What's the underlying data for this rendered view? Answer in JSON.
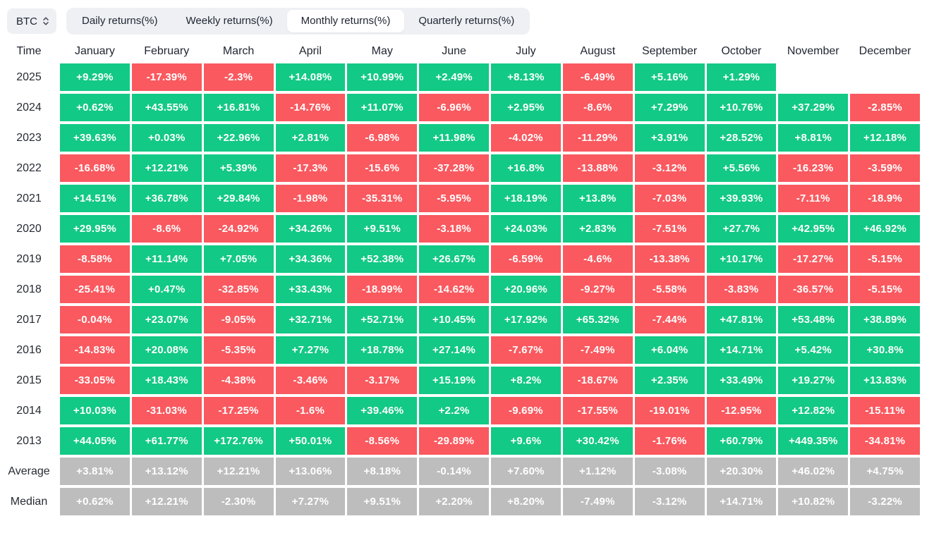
{
  "controls": {
    "asset_selector": {
      "label": "BTC"
    },
    "tabs": [
      {
        "label": "Daily returns(%)",
        "active": false
      },
      {
        "label": "Weekly returns(%)",
        "active": false
      },
      {
        "label": "Monthly returns(%)",
        "active": true
      },
      {
        "label": "Quarterly returns(%)",
        "active": false
      }
    ]
  },
  "colors": {
    "positive": "#12c985",
    "negative": "#f9595f",
    "summary": "#bdbdbd",
    "chip_background": "#eef0f4",
    "text_dark": "#1f2430"
  },
  "table": {
    "time_header": "Time",
    "months": [
      "January",
      "February",
      "March",
      "April",
      "May",
      "June",
      "July",
      "August",
      "September",
      "October",
      "November",
      "December"
    ],
    "rows": [
      {
        "label": "2025",
        "type": "year",
        "values": [
          "+9.29%",
          "-17.39%",
          "-2.3%",
          "+14.08%",
          "+10.99%",
          "+2.49%",
          "+8.13%",
          "-6.49%",
          "+5.16%",
          "+1.29%",
          "",
          ""
        ]
      },
      {
        "label": "2024",
        "type": "year",
        "values": [
          "+0.62%",
          "+43.55%",
          "+16.81%",
          "-14.76%",
          "+11.07%",
          "-6.96%",
          "+2.95%",
          "-8.6%",
          "+7.29%",
          "+10.76%",
          "+37.29%",
          "-2.85%"
        ]
      },
      {
        "label": "2023",
        "type": "year",
        "values": [
          "+39.63%",
          "+0.03%",
          "+22.96%",
          "+2.81%",
          "-6.98%",
          "+11.98%",
          "-4.02%",
          "-11.29%",
          "+3.91%",
          "+28.52%",
          "+8.81%",
          "+12.18%"
        ]
      },
      {
        "label": "2022",
        "type": "year",
        "values": [
          "-16.68%",
          "+12.21%",
          "+5.39%",
          "-17.3%",
          "-15.6%",
          "-37.28%",
          "+16.8%",
          "-13.88%",
          "-3.12%",
          "+5.56%",
          "-16.23%",
          "-3.59%"
        ]
      },
      {
        "label": "2021",
        "type": "year",
        "values": [
          "+14.51%",
          "+36.78%",
          "+29.84%",
          "-1.98%",
          "-35.31%",
          "-5.95%",
          "+18.19%",
          "+13.8%",
          "-7.03%",
          "+39.93%",
          "-7.11%",
          "-18.9%"
        ]
      },
      {
        "label": "2020",
        "type": "year",
        "values": [
          "+29.95%",
          "-8.6%",
          "-24.92%",
          "+34.26%",
          "+9.51%",
          "-3.18%",
          "+24.03%",
          "+2.83%",
          "-7.51%",
          "+27.7%",
          "+42.95%",
          "+46.92%"
        ]
      },
      {
        "label": "2019",
        "type": "year",
        "values": [
          "-8.58%",
          "+11.14%",
          "+7.05%",
          "+34.36%",
          "+52.38%",
          "+26.67%",
          "-6.59%",
          "-4.6%",
          "-13.38%",
          "+10.17%",
          "-17.27%",
          "-5.15%"
        ]
      },
      {
        "label": "2018",
        "type": "year",
        "values": [
          "-25.41%",
          "+0.47%",
          "-32.85%",
          "+33.43%",
          "-18.99%",
          "-14.62%",
          "+20.96%",
          "-9.27%",
          "-5.58%",
          "-3.83%",
          "-36.57%",
          "-5.15%"
        ]
      },
      {
        "label": "2017",
        "type": "year",
        "values": [
          "-0.04%",
          "+23.07%",
          "-9.05%",
          "+32.71%",
          "+52.71%",
          "+10.45%",
          "+17.92%",
          "+65.32%",
          "-7.44%",
          "+47.81%",
          "+53.48%",
          "+38.89%"
        ]
      },
      {
        "label": "2016",
        "type": "year",
        "values": [
          "-14.83%",
          "+20.08%",
          "-5.35%",
          "+7.27%",
          "+18.78%",
          "+27.14%",
          "-7.67%",
          "-7.49%",
          "+6.04%",
          "+14.71%",
          "+5.42%",
          "+30.8%"
        ]
      },
      {
        "label": "2015",
        "type": "year",
        "values": [
          "-33.05%",
          "+18.43%",
          "-4.38%",
          "-3.46%",
          "-3.17%",
          "+15.19%",
          "+8.2%",
          "-18.67%",
          "+2.35%",
          "+33.49%",
          "+19.27%",
          "+13.83%"
        ]
      },
      {
        "label": "2014",
        "type": "year",
        "values": [
          "+10.03%",
          "-31.03%",
          "-17.25%",
          "-1.6%",
          "+39.46%",
          "+2.2%",
          "-9.69%",
          "-17.55%",
          "-19.01%",
          "-12.95%",
          "+12.82%",
          "-15.11%"
        ]
      },
      {
        "label": "2013",
        "type": "year",
        "values": [
          "+44.05%",
          "+61.77%",
          "+172.76%",
          "+50.01%",
          "-8.56%",
          "-29.89%",
          "+9.6%",
          "+30.42%",
          "-1.76%",
          "+60.79%",
          "+449.35%",
          "-34.81%"
        ]
      },
      {
        "label": "Average",
        "type": "summary",
        "values": [
          "+3.81%",
          "+13.12%",
          "+12.21%",
          "+13.06%",
          "+8.18%",
          "-0.14%",
          "+7.60%",
          "+1.12%",
          "-3.08%",
          "+20.30%",
          "+46.02%",
          "+4.75%"
        ]
      },
      {
        "label": "Median",
        "type": "summary",
        "values": [
          "+0.62%",
          "+12.21%",
          "-2.30%",
          "+7.27%",
          "+9.51%",
          "+2.20%",
          "+8.20%",
          "-7.49%",
          "-3.12%",
          "+14.71%",
          "+10.82%",
          "-3.22%"
        ]
      }
    ]
  }
}
